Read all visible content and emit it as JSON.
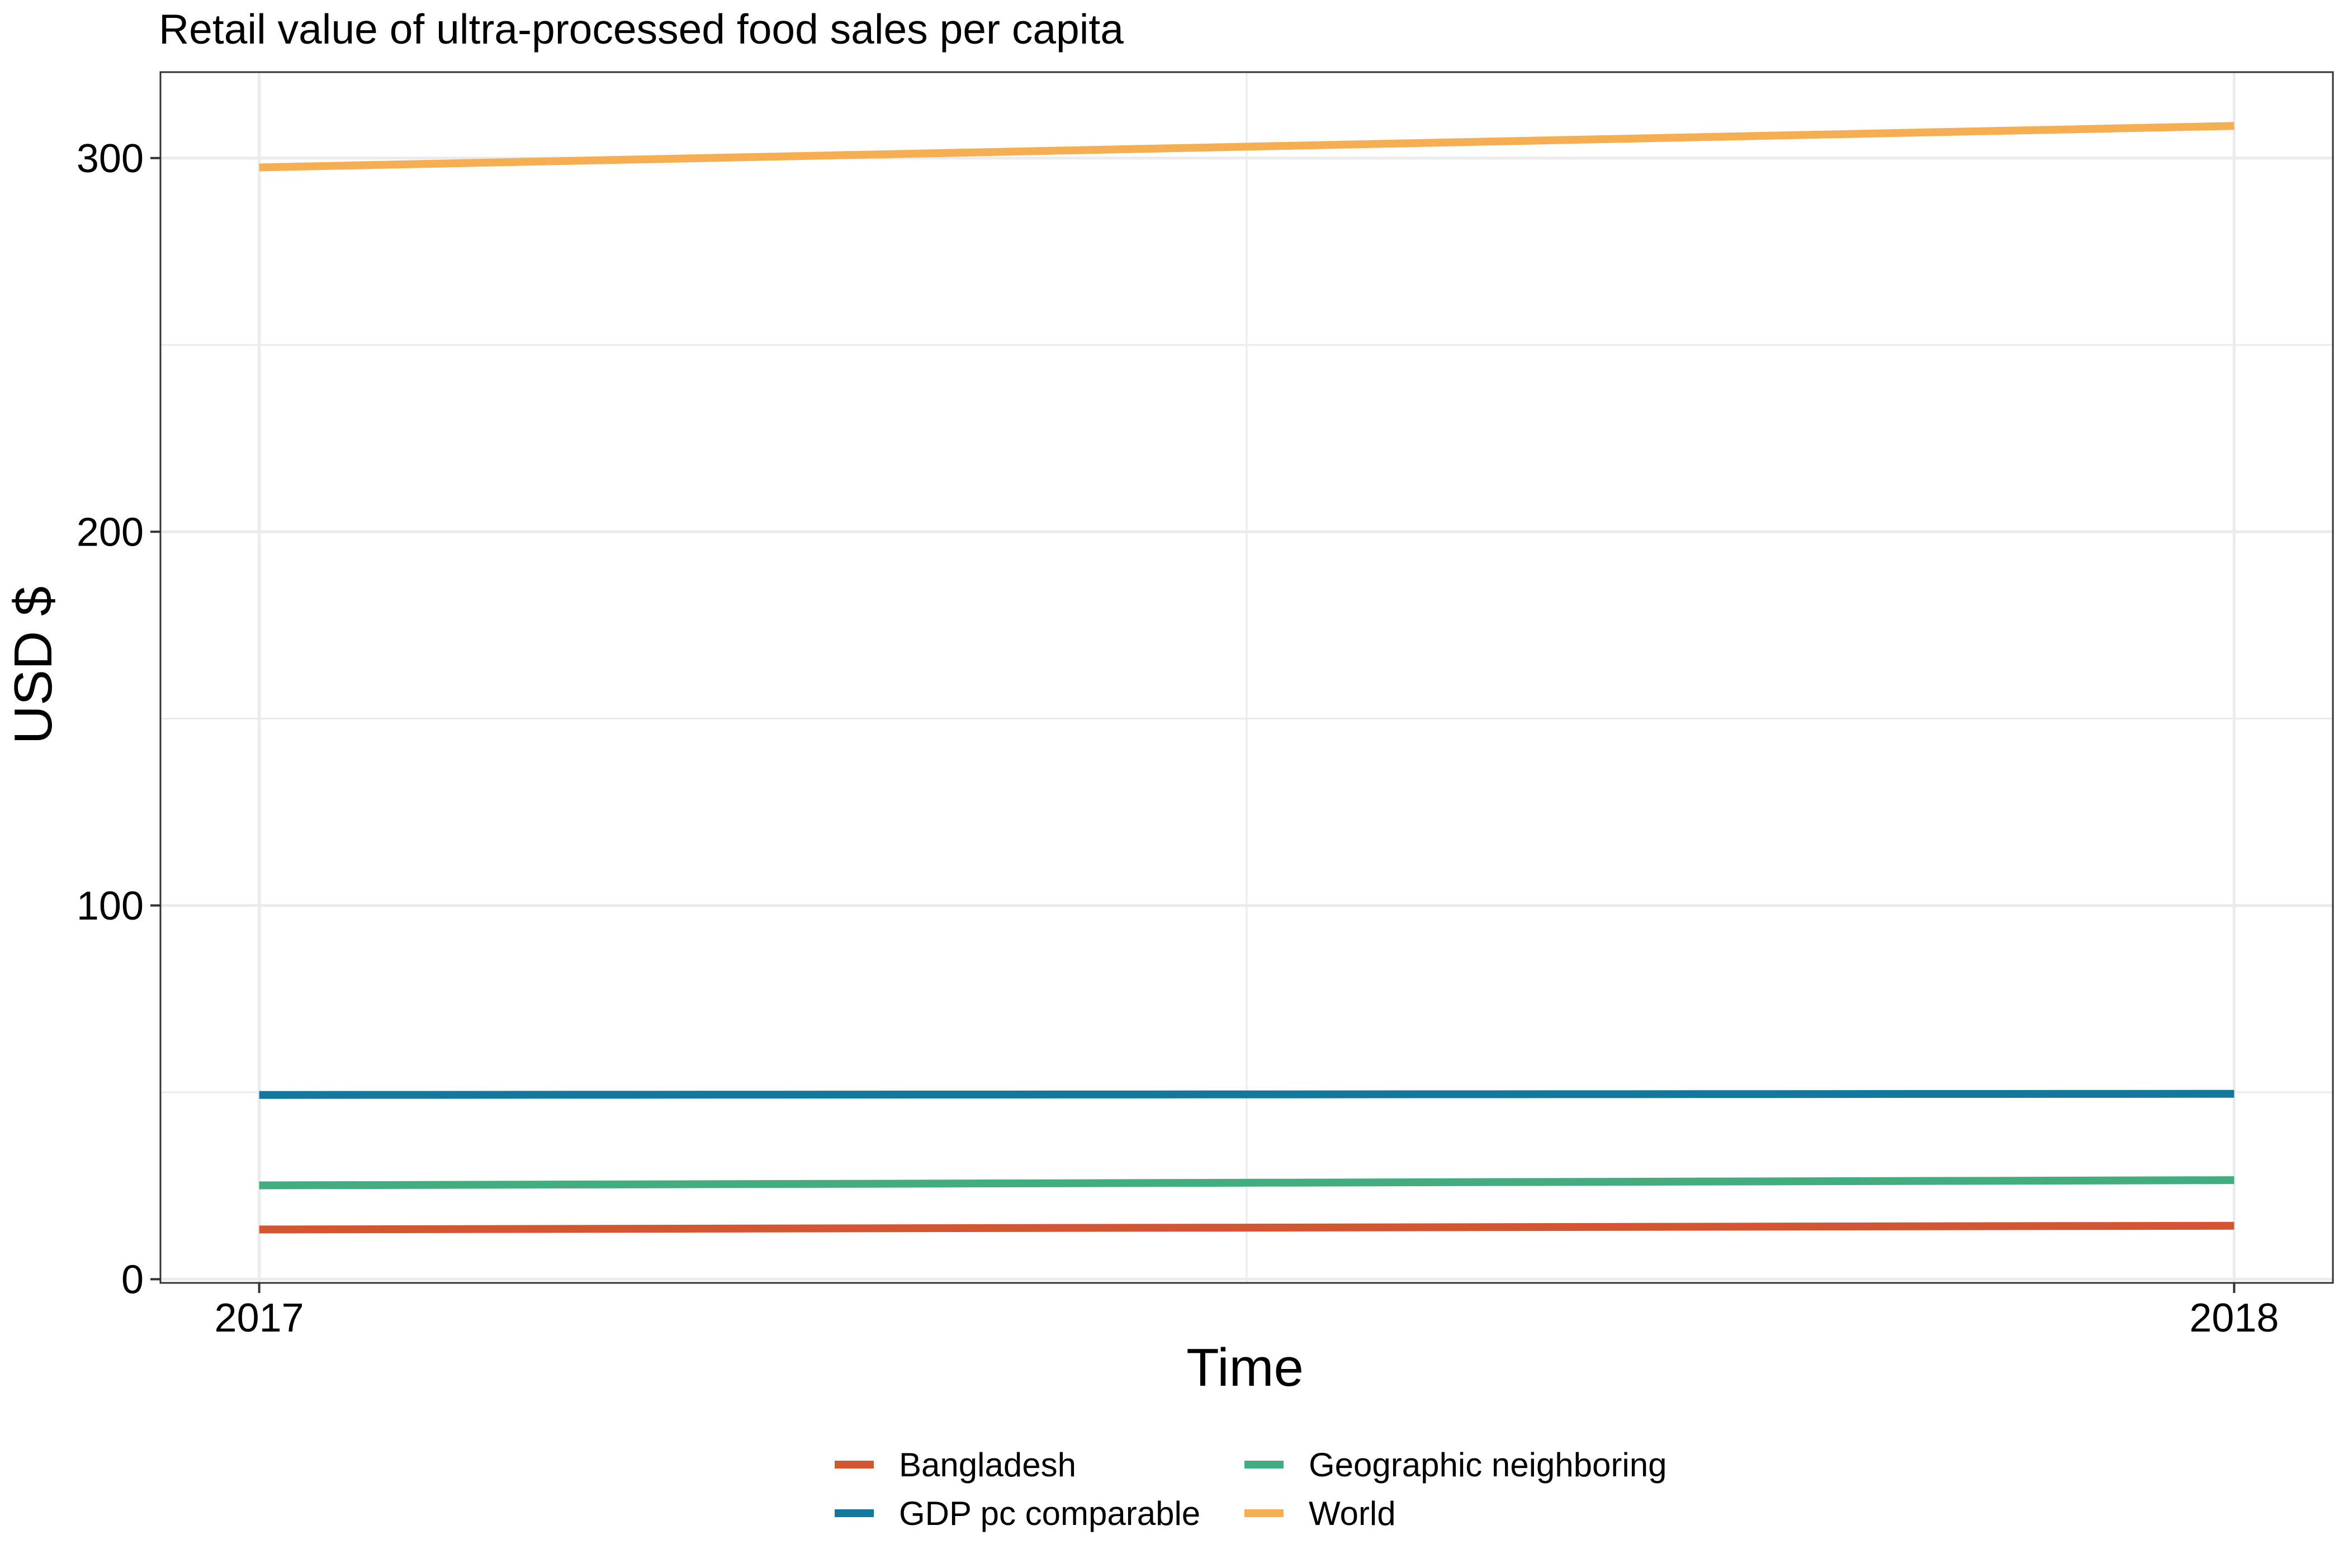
{
  "chart_data": {
    "type": "line",
    "title": "Retail value of ultra-processed food sales per capita",
    "xlabel": "Time",
    "ylabel": "USD $",
    "x": [
      2017,
      2018
    ],
    "xticks": [
      "2017",
      "2018"
    ],
    "xlim": [
      2016.95,
      2018.05
    ],
    "yticks": [
      "0",
      "100",
      "200",
      "300"
    ],
    "ylim": [
      -1,
      323
    ],
    "grid": true,
    "legend_position": "bottom",
    "series": [
      {
        "name": "Bangladesh",
        "color": "#D45531",
        "values": [
          13.3,
          14.3
        ]
      },
      {
        "name": "GDP pc comparable",
        "color": "#13789C",
        "values": [
          49.3,
          49.6
        ]
      },
      {
        "name": "Geographic neighboring",
        "color": "#44AD80",
        "values": [
          25.1,
          26.5
        ]
      },
      {
        "name": "World",
        "color": "#F6AE52",
        "values": [
          297.5,
          308.6
        ]
      }
    ]
  }
}
